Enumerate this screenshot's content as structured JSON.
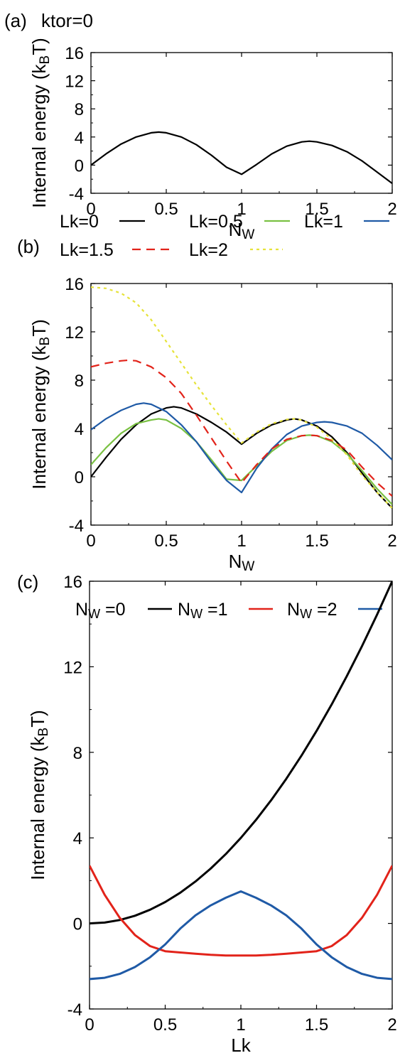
{
  "figure": {
    "panel_a": {
      "letter": "(a)",
      "annotation": {
        "main": "k",
        "sub": "tor",
        "suffix": "=0"
      }
    },
    "panel_b": {
      "letter": "(b)"
    },
    "panel_c": {
      "letter": "(c)"
    }
  },
  "colors": {
    "black": "#000000",
    "green": "#7ac143",
    "blue": "#1f5aa6",
    "red": "#e2231a",
    "yellow": "#e6e33a"
  },
  "chart_data": [
    {
      "id": "a",
      "type": "line",
      "title": "",
      "xlabel": {
        "main": "N",
        "sub": "W"
      },
      "ylabel": {
        "pre": "Internal energy (k",
        "sub": "B",
        "post": "T)"
      },
      "xlim": [
        0,
        2
      ],
      "ylim": [
        -4,
        16
      ],
      "xticks": [
        0,
        0.5,
        1,
        1.5,
        2
      ],
      "xtick_labels": [
        "0",
        "0.5",
        "1",
        "1.5",
        "2"
      ],
      "yticks": [
        -4,
        0,
        4,
        8,
        12,
        16
      ],
      "ytick_labels": [
        "-4",
        "0",
        "4",
        "8",
        "12",
        "16"
      ],
      "grid": false,
      "series": [
        {
          "color": "#000000",
          "dash": "solid",
          "x": [
            0,
            0.1,
            0.2,
            0.3,
            0.4,
            0.45,
            0.5,
            0.6,
            0.7,
            0.8,
            0.9,
            1.0,
            1.1,
            1.2,
            1.3,
            1.4,
            1.45,
            1.5,
            1.6,
            1.7,
            1.8,
            1.9,
            2.0
          ],
          "y": [
            0.0,
            1.6,
            3.0,
            4.0,
            4.6,
            4.7,
            4.6,
            4.0,
            2.9,
            1.4,
            -0.3,
            -1.3,
            0.1,
            1.6,
            2.7,
            3.3,
            3.4,
            3.3,
            2.8,
            1.9,
            0.6,
            -1.0,
            -2.6
          ]
        }
      ]
    },
    {
      "id": "b",
      "type": "line",
      "title": "",
      "xlabel": {
        "main": "N",
        "sub": "W"
      },
      "ylabel": {
        "pre": "Internal energy (k",
        "sub": "B",
        "post": "T)"
      },
      "xlim": [
        0,
        2
      ],
      "ylim": [
        -4,
        16
      ],
      "xticks": [
        0,
        0.5,
        1,
        1.5,
        2
      ],
      "xtick_labels": [
        "0",
        "0.5",
        "1",
        "1.5",
        "2"
      ],
      "yticks": [
        -4,
        0,
        4,
        8,
        12,
        16
      ],
      "ytick_labels": [
        "-4",
        "0",
        "4",
        "8",
        "12",
        "16"
      ],
      "grid": false,
      "legend": {
        "placement": "above"
      },
      "series": [
        {
          "name": "Lk=0",
          "color": "#000000",
          "dash": "solid",
          "x": [
            0,
            0.1,
            0.2,
            0.3,
            0.4,
            0.5,
            0.55,
            0.6,
            0.7,
            0.8,
            0.9,
            1.0,
            1.1,
            1.2,
            1.3,
            1.35,
            1.4,
            1.5,
            1.6,
            1.7,
            1.8,
            1.9,
            2.0
          ],
          "y": [
            0.0,
            1.6,
            3.1,
            4.3,
            5.2,
            5.7,
            5.8,
            5.7,
            5.2,
            4.5,
            3.7,
            2.7,
            3.6,
            4.3,
            4.7,
            4.8,
            4.7,
            4.2,
            3.3,
            2.0,
            0.3,
            -1.3,
            -2.6
          ]
        },
        {
          "name": "Lk=0.5",
          "color": "#7ac143",
          "dash": "solid",
          "x": [
            0,
            0.1,
            0.2,
            0.3,
            0.4,
            0.45,
            0.5,
            0.6,
            0.7,
            0.8,
            0.9,
            1.0,
            1.1,
            1.2,
            1.3,
            1.4,
            1.45,
            1.5,
            1.6,
            1.7,
            1.8,
            1.9,
            2.0
          ],
          "y": [
            1.0,
            2.4,
            3.6,
            4.4,
            4.7,
            4.8,
            4.7,
            4.0,
            2.9,
            1.4,
            -0.2,
            -0.3,
            0.9,
            2.1,
            3.0,
            3.4,
            3.45,
            3.4,
            2.9,
            1.9,
            0.5,
            -1.0,
            -2.3
          ]
        },
        {
          "name": "Lk=1",
          "color": "#1f5aa6",
          "dash": "solid",
          "x": [
            0,
            0.1,
            0.2,
            0.3,
            0.35,
            0.4,
            0.5,
            0.6,
            0.7,
            0.8,
            0.9,
            1.0,
            1.1,
            1.2,
            1.3,
            1.4,
            1.5,
            1.55,
            1.6,
            1.7,
            1.8,
            1.9,
            2.0
          ],
          "y": [
            3.9,
            4.8,
            5.5,
            6.0,
            6.1,
            6.0,
            5.4,
            4.3,
            2.9,
            1.2,
            -0.3,
            -1.3,
            0.7,
            2.3,
            3.5,
            4.2,
            4.5,
            4.55,
            4.5,
            4.2,
            3.6,
            2.6,
            1.4
          ]
        },
        {
          "name": "Lk=1.5",
          "color": "#e2231a",
          "dash": "dashed",
          "x": [
            0,
            0.1,
            0.2,
            0.25,
            0.3,
            0.4,
            0.5,
            0.6,
            0.7,
            0.8,
            0.9,
            1.0,
            1.1,
            1.2,
            1.3,
            1.4,
            1.45,
            1.5,
            1.6,
            1.7,
            1.8,
            1.9,
            2.0
          ],
          "y": [
            9.1,
            9.4,
            9.6,
            9.65,
            9.6,
            9.1,
            8.2,
            6.9,
            5.1,
            3.2,
            1.3,
            -0.5,
            1.0,
            2.3,
            3.1,
            3.4,
            3.45,
            3.4,
            3.0,
            2.2,
            0.8,
            -0.5,
            -1.6
          ]
        },
        {
          "name": "Lk=2",
          "color": "#e6e33a",
          "dash": "dotted",
          "x": [
            0,
            0.1,
            0.2,
            0.3,
            0.4,
            0.5,
            0.6,
            0.7,
            0.8,
            0.9,
            1.0,
            1.1,
            1.2,
            1.3,
            1.35,
            1.4,
            1.5,
            1.6,
            1.7,
            1.8,
            1.9,
            2.0
          ],
          "y": [
            15.7,
            15.6,
            15.2,
            14.4,
            13.0,
            11.2,
            9.4,
            7.6,
            5.9,
            4.3,
            2.8,
            3.7,
            4.4,
            4.75,
            4.8,
            4.7,
            4.1,
            3.1,
            1.8,
            0.1,
            -1.3,
            -2.6
          ]
        }
      ]
    },
    {
      "id": "c",
      "type": "line",
      "title": "",
      "xlabel": {
        "main": "Lk"
      },
      "ylabel": {
        "pre": "Internal energy (k",
        "sub": "B",
        "post": "T)"
      },
      "xlim": [
        0,
        2
      ],
      "ylim": [
        -4,
        16
      ],
      "xticks": [
        0,
        0.5,
        1,
        1.5,
        2
      ],
      "xtick_labels": [
        "0",
        "0.5",
        "1",
        "1.5",
        "2"
      ],
      "yticks": [
        -4,
        0,
        4,
        8,
        12,
        16
      ],
      "ytick_labels": [
        "-4",
        "0",
        "4",
        "8",
        "12",
        "16"
      ],
      "grid": false,
      "legend": {
        "placement": "above"
      },
      "series": [
        {
          "name_main": "N",
          "name_sub": "W",
          "name_suffix": " =0",
          "color": "#000000",
          "dash": "solid",
          "x": [
            0,
            0.1,
            0.2,
            0.3,
            0.4,
            0.5,
            0.6,
            0.7,
            0.8,
            0.9,
            1.0,
            1.1,
            1.2,
            1.3,
            1.4,
            1.5,
            1.6,
            1.7,
            1.8,
            1.9,
            2.0
          ],
          "y": [
            0.0,
            0.04,
            0.16,
            0.36,
            0.64,
            1.0,
            1.44,
            1.96,
            2.56,
            3.24,
            4.0,
            4.84,
            5.76,
            6.76,
            7.84,
            9.0,
            10.24,
            11.56,
            12.96,
            14.44,
            16.0
          ]
        },
        {
          "name_main": "N",
          "name_sub": "W",
          "name_suffix": " =1",
          "color": "#e2231a",
          "dash": "solid",
          "x": [
            0,
            0.1,
            0.2,
            0.3,
            0.4,
            0.5,
            0.6,
            0.7,
            0.8,
            0.9,
            1.0,
            1.1,
            1.2,
            1.3,
            1.4,
            1.5,
            1.6,
            1.7,
            1.8,
            1.9,
            2.0
          ],
          "y": [
            2.7,
            1.34,
            0.26,
            -0.54,
            -1.06,
            -1.3,
            -1.36,
            -1.42,
            -1.47,
            -1.5,
            -1.5,
            -1.5,
            -1.47,
            -1.42,
            -1.36,
            -1.3,
            -1.06,
            -0.54,
            0.26,
            1.34,
            2.7
          ]
        },
        {
          "name_main": "N",
          "name_sub": "W",
          "name_suffix": " =2",
          "color": "#1f5aa6",
          "dash": "solid",
          "x": [
            0,
            0.1,
            0.2,
            0.3,
            0.4,
            0.5,
            0.6,
            0.7,
            0.8,
            0.9,
            1.0,
            1.1,
            1.2,
            1.3,
            1.4,
            1.5,
            1.6,
            1.7,
            1.8,
            1.9,
            2.0
          ],
          "y": [
            -2.6,
            -2.54,
            -2.36,
            -2.04,
            -1.58,
            -0.98,
            -0.24,
            0.38,
            0.84,
            1.2,
            1.5,
            1.2,
            0.84,
            0.38,
            -0.24,
            -0.98,
            -1.58,
            -2.04,
            -2.36,
            -2.54,
            -2.6
          ]
        }
      ]
    }
  ]
}
